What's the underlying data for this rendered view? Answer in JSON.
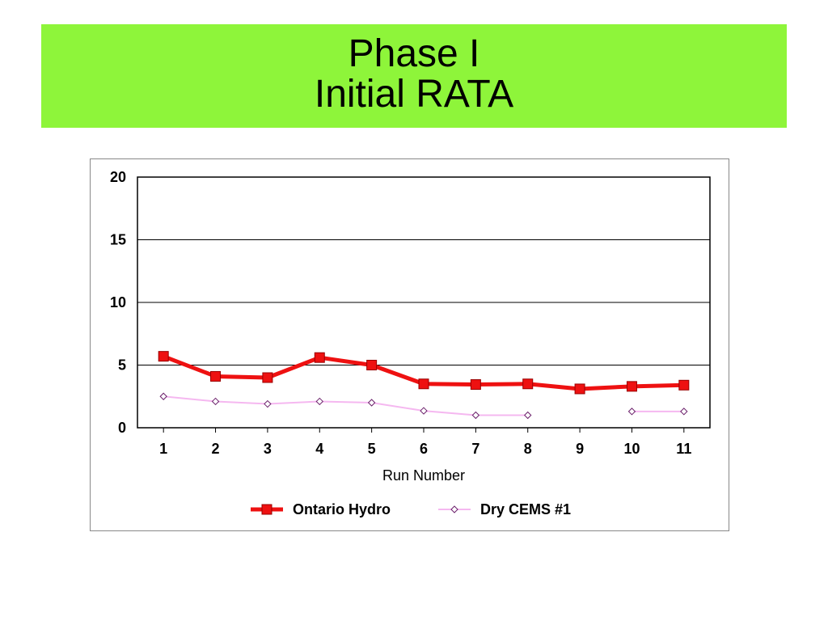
{
  "slide": {
    "title_line1": "Phase I",
    "title_line2": "Initial RATA",
    "band_color": "#8ef53a"
  },
  "chart_data": {
    "type": "line",
    "title": "",
    "xlabel": "Run Number",
    "ylabel": "",
    "x": [
      1,
      2,
      3,
      4,
      5,
      6,
      7,
      8,
      9,
      10,
      11
    ],
    "ylim": [
      0,
      20
    ],
    "yticks": [
      0,
      5,
      10,
      15,
      20
    ],
    "grid": true,
    "legend": "bottom",
    "series": [
      {
        "name": "Ontario Hydro",
        "color": "#ee1111",
        "marker": "square",
        "values": [
          5.7,
          4.1,
          4.0,
          5.6,
          5.0,
          3.5,
          3.45,
          3.5,
          3.1,
          3.3,
          3.4
        ]
      },
      {
        "name": "Dry CEMS #1",
        "color": "#f5b8f0",
        "marker": "diamond",
        "values": [
          2.5,
          2.1,
          1.9,
          2.1,
          2.0,
          1.35,
          1.0,
          1.0,
          null,
          1.3,
          1.3
        ]
      }
    ]
  }
}
